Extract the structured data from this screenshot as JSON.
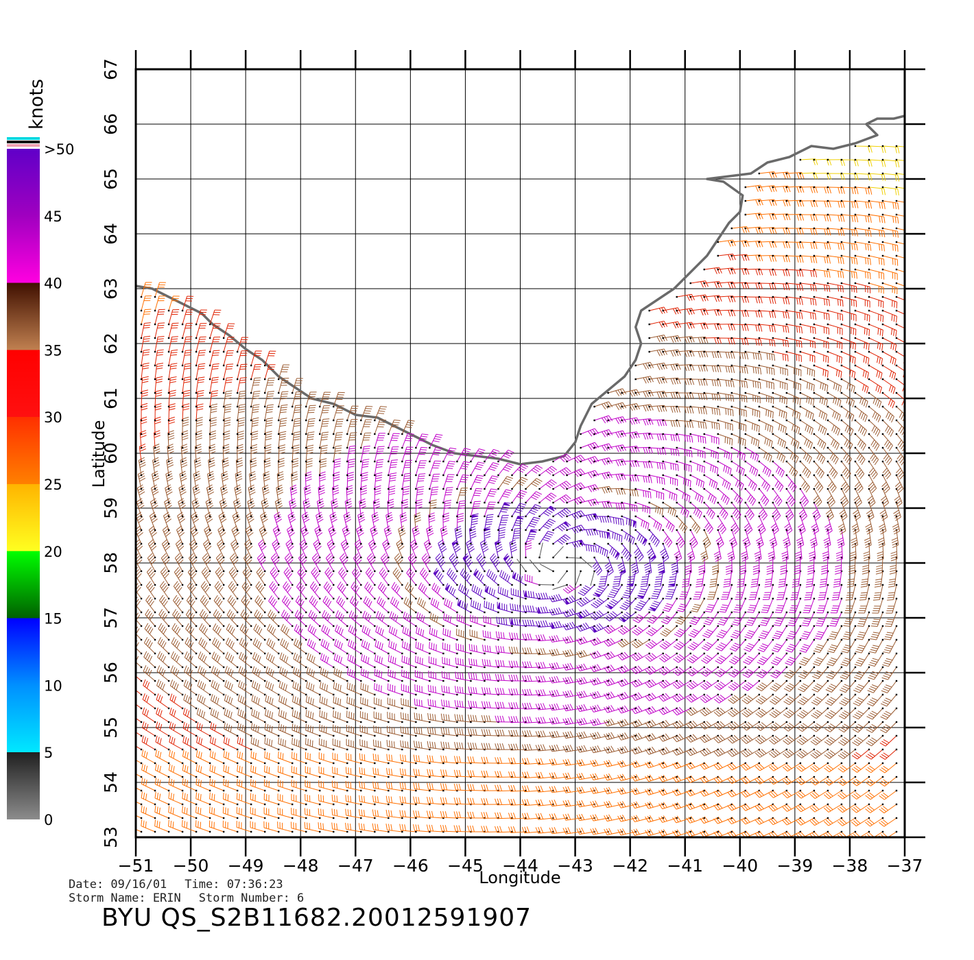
{
  "chart_data": {
    "type": "wind-barb-map",
    "xlabel": "Longitude",
    "ylabel": "Latitude",
    "xlim": [
      -51,
      -37
    ],
    "ylim": [
      53,
      67
    ],
    "xticks": [
      "-51",
      "-50",
      "-49",
      "-48",
      "-47",
      "-46",
      "-45",
      "-44",
      "-43",
      "-42",
      "-41",
      "-40",
      "-39",
      "-38",
      "-37"
    ],
    "yticks": [
      "53",
      "54",
      "55",
      "56",
      "57",
      "58",
      "59",
      "60",
      "61",
      "62",
      "63",
      "64",
      "65",
      "66",
      "67"
    ],
    "grid": true,
    "land_color": "#666666",
    "storm_center": {
      "lon": -43.3,
      "lat": 57.9
    },
    "colorbar": {
      "unit": "knots",
      "labels": [
        "0",
        "5",
        "10",
        "15",
        "20",
        "25",
        "30",
        "35",
        "40",
        "45",
        ">50"
      ],
      "stops": [
        {
          "v": 0,
          "c": "#8c8c8c"
        },
        {
          "v": 5,
          "c": "#202020"
        },
        {
          "v": 5.01,
          "c": "#00e8ff"
        },
        {
          "v": 10,
          "c": "#0090ff"
        },
        {
          "v": 15,
          "c": "#0000ff"
        },
        {
          "v": 15.01,
          "c": "#006000"
        },
        {
          "v": 20,
          "c": "#00ff00"
        },
        {
          "v": 20.01,
          "c": "#ffff20"
        },
        {
          "v": 25,
          "c": "#ffb400"
        },
        {
          "v": 25.01,
          "c": "#ff8000"
        },
        {
          "v": 30,
          "c": "#ff3000"
        },
        {
          "v": 30.01,
          "c": "#ff1010"
        },
        {
          "v": 35,
          "c": "#ff0000"
        },
        {
          "v": 35.01,
          "c": "#c08050"
        },
        {
          "v": 40,
          "c": "#401000"
        },
        {
          "v": 40.01,
          "c": "#ff00e0"
        },
        {
          "v": 45,
          "c": "#a000c0"
        },
        {
          "v": 50,
          "c": "#6000c8"
        }
      ]
    }
  },
  "meta": {
    "date": "Date: 09/16/01",
    "time": "Time: 07:36:23",
    "storm_name": "Storm Name: ERIN",
    "storm_number": "Storm Number: 6",
    "product": "BYU QS_S2B11682.20012591907"
  }
}
